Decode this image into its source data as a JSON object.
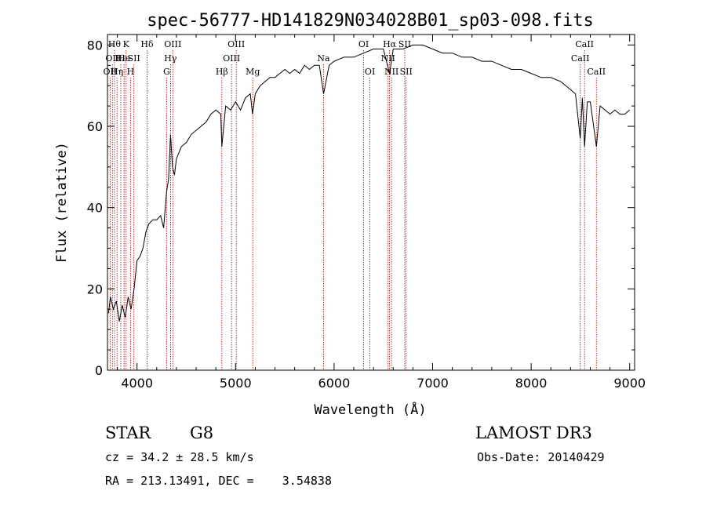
{
  "chart_data": {
    "type": "line",
    "title": "spec-56777-HD141829N034028B01_sp03-098.fits",
    "xlabel": "Wavelength (Å)",
    "ylabel": "Flux (relative)",
    "xlim": [
      3700,
      9050
    ],
    "ylim": [
      0,
      82
    ],
    "xticks": [
      4000,
      5000,
      6000,
      7000,
      8000,
      9000
    ],
    "yticks": [
      0,
      20,
      40,
      60,
      80
    ],
    "grid": false,
    "series": [
      {
        "x": [
          3710,
          3730,
          3760,
          3790,
          3820,
          3850,
          3880,
          3910,
          3940,
          3970,
          4000,
          4030,
          4060,
          4090,
          4120,
          4160,
          4200,
          4240,
          4270,
          4300,
          4320,
          4340,
          4360,
          4380,
          4400,
          4450,
          4500,
          4550,
          4600,
          4650,
          4700,
          4750,
          4800,
          4850,
          4861,
          4900,
          4950,
          5000,
          5050,
          5100,
          5150,
          5172,
          5200,
          5250,
          5300,
          5350,
          5400,
          5450,
          5500,
          5550,
          5600,
          5650,
          5700,
          5750,
          5800,
          5850,
          5893,
          5950,
          6000,
          6100,
          6200,
          6300,
          6400,
          6500,
          6563,
          6600,
          6700,
          6800,
          6900,
          7000,
          7100,
          7200,
          7300,
          7400,
          7500,
          7600,
          7700,
          7800,
          7900,
          8000,
          8100,
          8200,
          8300,
          8400,
          8450,
          8498,
          8520,
          8542,
          8570,
          8600,
          8662,
          8700,
          8750,
          8800,
          8850,
          8900,
          8950,
          9000
        ],
        "values": [
          14,
          18,
          15,
          17,
          12,
          16,
          13,
          18,
          15,
          20,
          27,
          28,
          30,
          34,
          36,
          37,
          37,
          38,
          35,
          44,
          47,
          58,
          50,
          48,
          52,
          55,
          56,
          58,
          59,
          60,
          61,
          63,
          64,
          63,
          55,
          65,
          64,
          66,
          64,
          67,
          68,
          63,
          68,
          70,
          71,
          72,
          72,
          73,
          74,
          73,
          74,
          73,
          75,
          74,
          75,
          75,
          68,
          75,
          76,
          77,
          77,
          78,
          79,
          79,
          73,
          79,
          79,
          80,
          80,
          79,
          78,
          78,
          77,
          77,
          76,
          76,
          75,
          74,
          74,
          73,
          72,
          72,
          71,
          69,
          68,
          57,
          67,
          55,
          66,
          66,
          55,
          65,
          64,
          63,
          64,
          63,
          63,
          64
        ]
      }
    ],
    "line_markers": [
      {
        "wl": 3727,
        "label": "OII",
        "row": 2
      },
      {
        "wl": 3750,
        "label": "OII",
        "row": 1
      },
      {
        "wl": 3771,
        "label": "Hθ",
        "row": 0
      },
      {
        "wl": 3797,
        "label": "Hη",
        "row": 2
      },
      {
        "wl": 3835,
        "label": "Hε",
        "row": 1
      },
      {
        "wl": 3869,
        "label": "He",
        "row": 1
      },
      {
        "wl": 3889,
        "label": "K",
        "row": 0
      },
      {
        "wl": 3934,
        "label": "H",
        "row": 2
      },
      {
        "wl": 3968,
        "label": "SII",
        "row": 1
      },
      {
        "wl": 4102,
        "label": "Hδ",
        "row": 0
      },
      {
        "wl": 4300,
        "label": "G",
        "row": 2
      },
      {
        "wl": 4340,
        "label": "Hγ",
        "row": 1
      },
      {
        "wl": 4363,
        "label": "OIII",
        "row": 0
      },
      {
        "wl": 4861,
        "label": "Hβ",
        "row": 2
      },
      {
        "wl": 4959,
        "label": "OIII",
        "row": 1
      },
      {
        "wl": 5007,
        "label": "OIII",
        "row": 0
      },
      {
        "wl": 5175,
        "label": "Mg",
        "row": 2
      },
      {
        "wl": 5893,
        "label": "Na",
        "row": 1
      },
      {
        "wl": 6300,
        "label": "OI",
        "row": 0
      },
      {
        "wl": 6364,
        "label": "OI",
        "row": 2
      },
      {
        "wl": 6548,
        "label": "NII",
        "row": 1
      },
      {
        "wl": 6563,
        "label": "Hα",
        "row": 0
      },
      {
        "wl": 6583,
        "label": "NII",
        "row": 2
      },
      {
        "wl": 6717,
        "label": "SII",
        "row": 0
      },
      {
        "wl": 6731,
        "label": "SII",
        "row": 2
      },
      {
        "wl": 8498,
        "label": "CaII",
        "row": 1
      },
      {
        "wl": 8542,
        "label": "CaII",
        "row": 0
      },
      {
        "wl": 8662,
        "label": "CaII",
        "row": 2
      }
    ]
  },
  "info": {
    "class": "STAR",
    "subclass": "G8",
    "survey": "LAMOST DR3",
    "cz": "cz = 34.2 ± 28.5 km/s",
    "obs_date": "Obs-Date: 20140429",
    "coords": "RA = 213.13491, DEC =    3.54838"
  }
}
